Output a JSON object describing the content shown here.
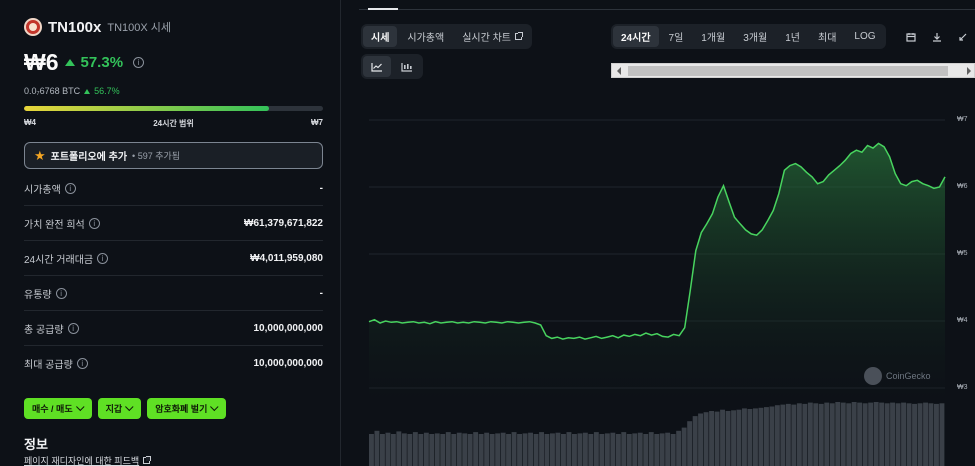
{
  "coin": {
    "name": "TN100x",
    "symbol_label": "TN100X 시세",
    "price": "₩6",
    "change_pct": "57.3%",
    "btc_price": "0.0₇6768 BTC",
    "btc_change": "56.7%"
  },
  "range": {
    "low": "₩4",
    "label": "24시간 범위",
    "high": "₩7",
    "position": 0.82
  },
  "portfolio": {
    "label": "포트폴리오에 추가",
    "count": "• 597 추가됨"
  },
  "stats": [
    {
      "label": "시가총액",
      "value": "-"
    },
    {
      "label": "가치 완전 희석",
      "value": "₩61,379,671,822"
    },
    {
      "label": "24시간 거래대금",
      "value": "₩4,011,959,080"
    },
    {
      "label": "유통량",
      "value": "-"
    },
    {
      "label": "총 공급량",
      "value": "10,000,000,000"
    },
    {
      "label": "최대 공급량",
      "value": "10,000,000,000"
    }
  ],
  "actions": [
    {
      "label": "매수 / 매도"
    },
    {
      "label": "지갑"
    },
    {
      "label": "암호화폐 벌기"
    }
  ],
  "info": {
    "title": "정보",
    "feedback": "페이지 재디자인에 대한 피드백"
  },
  "chart_tabs": [
    {
      "label": "시세",
      "active": true
    },
    {
      "label": "시가총액",
      "active": false
    },
    {
      "label": "실시간 차트",
      "active": false
    }
  ],
  "time_ranges": [
    {
      "label": "24시간",
      "active": true
    },
    {
      "label": "7일",
      "active": false
    },
    {
      "label": "1개월",
      "active": false
    },
    {
      "label": "3개월",
      "active": false
    },
    {
      "label": "1년",
      "active": false
    },
    {
      "label": "최대",
      "active": false
    },
    {
      "label": "LOG",
      "active": false
    }
  ],
  "watermark": "CoinGecko",
  "colors": {
    "accent_green": "#33c25a",
    "button_green": "#5fe024",
    "background": "#0d1117"
  },
  "chart_data": {
    "type": "area",
    "y_ticks": [
      "₩7",
      "₩6",
      "₩5",
      "₩4",
      "₩3"
    ],
    "ylim": [
      3,
      7
    ],
    "price": [
      3.99,
      4.02,
      3.97,
      4.0,
      3.98,
      3.99,
      3.97,
      3.98,
      3.99,
      3.97,
      3.98,
      3.96,
      3.99,
      3.97,
      3.98,
      3.99,
      3.97,
      3.98,
      3.97,
      3.99,
      3.98,
      3.97,
      3.99,
      3.98,
      3.97,
      3.99,
      3.98,
      3.97,
      3.98,
      3.99,
      3.97,
      3.94,
      3.78,
      3.74,
      3.76,
      3.73,
      3.75,
      3.74,
      3.76,
      3.73,
      3.75,
      3.77,
      3.74,
      3.76,
      3.78,
      3.75,
      3.79,
      3.77,
      3.8,
      3.78,
      3.82,
      3.79,
      3.81,
      3.77,
      3.76,
      3.8,
      3.78,
      3.9,
      4.45,
      5.05,
      5.32,
      5.45,
      5.6,
      5.85,
      6.02,
      5.78,
      5.55,
      5.45,
      5.36,
      5.3,
      5.28,
      5.36,
      5.5,
      5.65,
      5.9,
      6.25,
      6.32,
      6.35,
      6.3,
      6.22,
      6.15,
      6.05,
      6.08,
      6.18,
      6.25,
      6.32,
      6.4,
      6.5,
      6.55,
      6.52,
      6.62,
      6.58,
      6.65,
      6.6,
      6.45,
      6.2,
      6.05,
      6.02,
      6.08,
      6.1,
      6.05,
      6.02,
      5.98,
      6.0,
      6.15
    ],
    "volume": [
      0.5,
      0.55,
      0.5,
      0.52,
      0.5,
      0.54,
      0.51,
      0.5,
      0.53,
      0.5,
      0.52,
      0.5,
      0.51,
      0.5,
      0.53,
      0.5,
      0.52,
      0.51,
      0.5,
      0.53,
      0.5,
      0.52,
      0.5,
      0.51,
      0.52,
      0.5,
      0.53,
      0.5,
      0.51,
      0.52,
      0.5,
      0.53,
      0.5,
      0.51,
      0.52,
      0.5,
      0.53,
      0.5,
      0.51,
      0.52,
      0.5,
      0.53,
      0.5,
      0.51,
      0.52,
      0.5,
      0.53,
      0.5,
      0.51,
      0.52,
      0.5,
      0.53,
      0.5,
      0.51,
      0.52,
      0.5,
      0.55,
      0.6,
      0.7,
      0.78,
      0.82,
      0.84,
      0.86,
      0.85,
      0.88,
      0.86,
      0.87,
      0.88,
      0.9,
      0.89,
      0.9,
      0.91,
      0.92,
      0.93,
      0.95,
      0.96,
      0.97,
      0.96,
      0.98,
      0.97,
      0.99,
      0.98,
      0.97,
      0.99,
      0.98,
      1.0,
      0.99,
      0.98,
      1.0,
      0.99,
      0.98,
      0.99,
      1.0,
      0.99,
      0.98,
      0.99,
      0.98,
      0.99,
      0.98,
      0.97,
      0.98,
      0.99,
      0.98,
      0.97,
      0.98
    ]
  }
}
